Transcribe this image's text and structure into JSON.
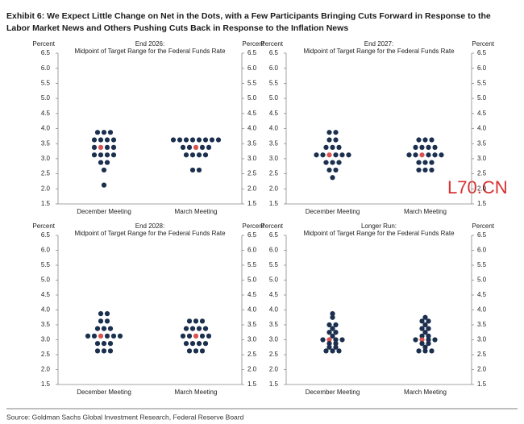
{
  "header": {
    "title": [
      "Exhibit 6: We Expect Little Change on Net in the Dots, with a Few Participants Bringing Cuts Forward in Response to the",
      "Labor Market News and Others Pushing Cuts Back in Response to the Inflation News"
    ]
  },
  "chart_data": [
    {
      "type": "dot",
      "title": "End 2026:",
      "subtitle": "Midpoint of Target Range for the Federal Funds Rate",
      "ylabel": "Percent",
      "y2label": "Percent",
      "categories": [
        "December Meeting",
        "March Meeting"
      ],
      "color": "#1b2f4e",
      "median_color": "#d9534f",
      "medians": [
        3.375,
        3.375
      ],
      "values": [
        [
          3.875,
          3.875,
          3.875,
          3.625,
          3.625,
          3.625,
          3.625,
          3.375,
          3.375,
          3.375,
          3.375,
          3.125,
          3.125,
          3.125,
          3.125,
          2.875,
          2.875,
          2.625,
          2.125
        ],
        [
          3.625,
          3.625,
          3.625,
          3.625,
          3.625,
          3.625,
          3.625,
          3.625,
          3.375,
          3.375,
          3.375,
          3.375,
          3.375,
          3.125,
          3.125,
          3.125,
          3.125,
          2.625,
          2.625
        ]
      ],
      "ylim": [
        1.5,
        6.5
      ],
      "yticks": [
        1.5,
        {
          "value": 2,
          "label": "2.0"
        },
        2.5,
        {
          "value": 3,
          "label": "3.0"
        },
        3.5,
        {
          "value": 4,
          "label": "4.0"
        },
        4.5,
        {
          "value": 5,
          "label": "5.0"
        },
        5.5,
        {
          "value": 6,
          "label": "6.0"
        },
        6.5
      ],
      "y2lim": [
        1.5,
        6.5
      ],
      "y2ticks": [
        1.5,
        {
          "value": 2,
          "label": "2.0"
        },
        2.5,
        {
          "value": 3,
          "label": "3.0"
        },
        3.5,
        {
          "value": 4,
          "label": "4.0"
        },
        4.5,
        {
          "value": 5,
          "label": "5.0"
        },
        5.5,
        {
          "value": 6,
          "label": "6.0"
        },
        6.5
      ]
    },
    {
      "type": "dot",
      "title": "End 2027:",
      "subtitle": "Midpoint of Target Range for the Federal Funds Rate",
      "ylabel": "Percent",
      "y2label": "Percent",
      "categories": [
        "December Meeting",
        "March Meeting"
      ],
      "color": "#1b2f4e",
      "median_color": "#d9534f",
      "medians": [
        3.125,
        3.125
      ],
      "values": [
        [
          3.875,
          3.875,
          3.625,
          3.625,
          3.375,
          3.375,
          3.375,
          3.125,
          3.125,
          3.125,
          3.125,
          3.125,
          3.125,
          2.875,
          2.875,
          2.875,
          2.625,
          2.625,
          2.375
        ],
        [
          3.625,
          3.625,
          3.625,
          3.375,
          3.375,
          3.375,
          3.375,
          3.125,
          3.125,
          3.125,
          3.125,
          3.125,
          3.125,
          2.875,
          2.875,
          2.875,
          2.625,
          2.625,
          2.625
        ]
      ],
      "ylim": [
        1.5,
        6.5
      ],
      "yticks": [
        1.5,
        {
          "value": 2,
          "label": "2.0"
        },
        2.5,
        {
          "value": 3,
          "label": "3.0"
        },
        3.5,
        {
          "value": 4,
          "label": "4.0"
        },
        4.5,
        {
          "value": 5,
          "label": "5.0"
        },
        5.5,
        {
          "value": 6,
          "label": "6.0"
        },
        6.5
      ],
      "y2lim": [
        1.5,
        6.5
      ],
      "y2ticks": [
        1.5,
        {
          "value": 2,
          "label": "2.0"
        },
        2.5,
        {
          "value": 3,
          "label": "3.0"
        },
        3.5,
        {
          "value": 4,
          "label": "4.0"
        },
        4.5,
        {
          "value": 5,
          "label": "5.0"
        },
        5.5,
        {
          "value": 6,
          "label": "6.0"
        },
        6.5
      ]
    },
    {
      "type": "dot",
      "title": "End 2028:",
      "subtitle": "Midpoint of Target Range for the Federal Funds Rate",
      "ylabel": "Percent",
      "y2label": "Percent",
      "categories": [
        "December Meeting",
        "March Meeting"
      ],
      "color": "#1b2f4e",
      "median_color": "#d9534f",
      "medians": [
        3.125,
        3.125
      ],
      "values": [
        [
          3.875,
          3.875,
          3.625,
          3.625,
          3.375,
          3.375,
          3.375,
          3.125,
          3.125,
          3.125,
          3.125,
          3.125,
          3.125,
          2.875,
          2.875,
          2.875,
          2.625,
          2.625,
          2.625
        ],
        [
          3.625,
          3.625,
          3.625,
          3.375,
          3.375,
          3.375,
          3.375,
          3.125,
          3.125,
          3.125,
          3.125,
          3.125,
          2.875,
          2.875,
          2.875,
          2.875,
          2.625,
          2.625,
          2.625
        ]
      ],
      "ylim": [
        1.5,
        6.5
      ],
      "yticks": [
        1.5,
        {
          "value": 2,
          "label": "2.0"
        },
        2.5,
        {
          "value": 3,
          "label": "3.0"
        },
        3.5,
        {
          "value": 4,
          "label": "4.0"
        },
        4.5,
        {
          "value": 5,
          "label": "5.0"
        },
        5.5,
        {
          "value": 6,
          "label": "6.0"
        },
        6.5
      ],
      "y2lim": [
        1.5,
        6.5
      ],
      "y2ticks": [
        1.5,
        {
          "value": 2,
          "label": "2.0"
        },
        2.5,
        {
          "value": 3,
          "label": "3.0"
        },
        3.5,
        {
          "value": 4,
          "label": "4.0"
        },
        4.5,
        {
          "value": 5,
          "label": "5.0"
        },
        5.5,
        {
          "value": 6,
          "label": "6.0"
        },
        6.5
      ]
    },
    {
      "type": "dot",
      "title": "Longer Run:",
      "subtitle": "Midpoint of Target Range for the Federal Funds Rate",
      "ylabel": "Percent",
      "y2label": "Percent",
      "categories": [
        "December Meeting",
        "March Meeting"
      ],
      "color": "#1b2f4e",
      "median_color": "#d9534f",
      "medians": [
        3,
        3
      ],
      "values": [
        [
          3.875,
          3.75,
          3.5,
          3.5,
          3.375,
          3.25,
          3.25,
          3.125,
          3,
          3,
          3,
          3,
          2.875,
          2.875,
          2.75,
          2.75,
          2.625,
          2.625,
          2.625
        ],
        [
          3.75,
          3.625,
          3.625,
          3.5,
          3.375,
          3.375,
          3.25,
          3.125,
          3.125,
          3,
          3,
          3,
          3,
          2.875,
          2.875,
          2.75,
          2.625,
          2.625,
          2.625
        ]
      ],
      "ylim": [
        1.5,
        6.5
      ],
      "yticks": [
        1.5,
        {
          "value": 2,
          "label": "2.0"
        },
        2.5,
        {
          "value": 3,
          "label": "3.0"
        },
        3.5,
        {
          "value": 4,
          "label": "4.0"
        },
        4.5,
        {
          "value": 5,
          "label": "5.0"
        },
        5.5,
        {
          "value": 6,
          "label": "6.0"
        },
        6.5
      ],
      "y2lim": [
        1.5,
        6.5
      ],
      "y2ticks": [
        1.5,
        {
          "value": 2,
          "label": "2.0"
        },
        2.5,
        {
          "value": 3,
          "label": "3.0"
        },
        3.5,
        {
          "value": 4,
          "label": "4.0"
        },
        4.5,
        {
          "value": 5,
          "label": "5.0"
        },
        5.5,
        {
          "value": 6,
          "label": "6.0"
        },
        6.5
      ]
    }
  ],
  "source": "Source: Goldman Sachs Global Investment Research, Federal Reserve Board",
  "watermark": "L70.CN"
}
